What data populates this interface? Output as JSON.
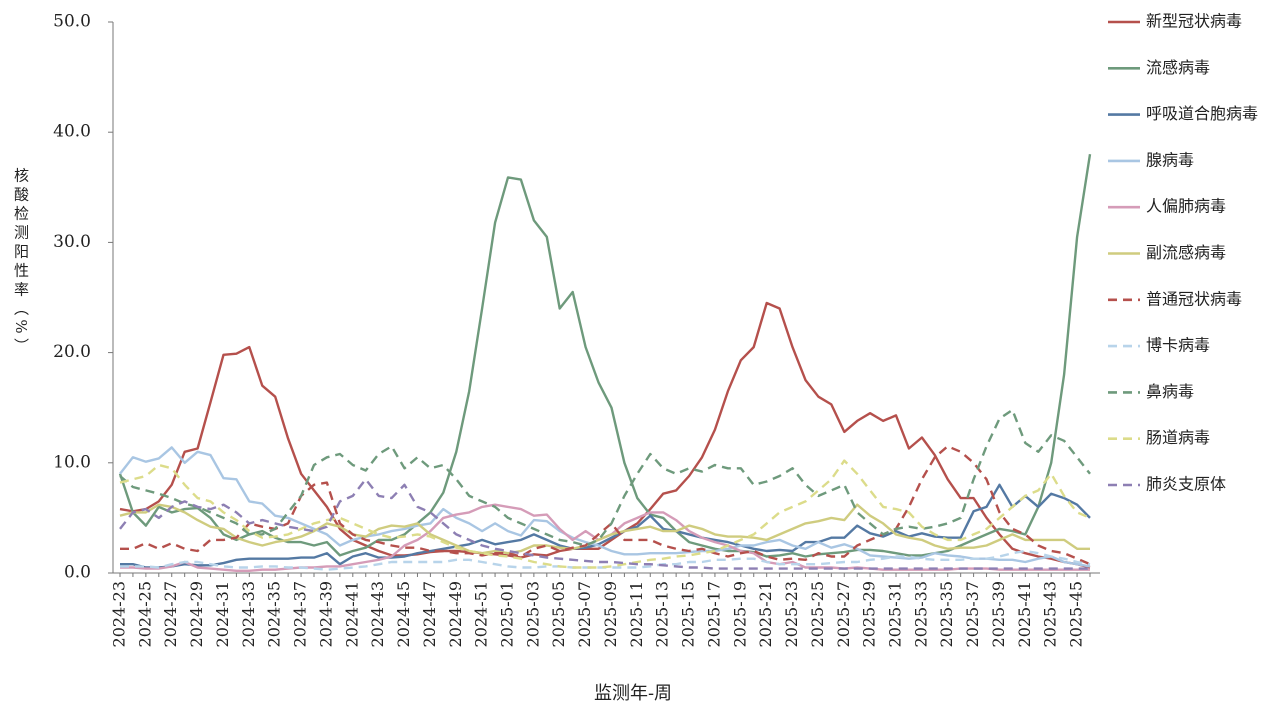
{
  "chart_data": {
    "type": "line",
    "y_label": "核酸检测阳性率（%）",
    "x_label": "监测年-周",
    "categories": [
      "2024-23",
      null,
      "2024-25",
      null,
      "2024-27",
      null,
      "2024-29",
      null,
      "2024-31",
      null,
      "2024-33",
      null,
      "2024-35",
      null,
      "2024-37",
      null,
      "2024-39",
      null,
      "2024-41",
      null,
      "2024-43",
      null,
      "2024-45",
      null,
      "2024-47",
      null,
      "2024-49",
      null,
      "2024-51",
      null,
      "2025-01",
      null,
      "2025-03",
      null,
      "2025-05",
      null,
      "2025-07",
      null,
      "2025-09",
      null,
      "2025-11",
      null,
      "2025-13",
      null,
      "2025-15",
      null,
      "2025-17",
      null,
      "2025-19",
      null,
      "2025-21",
      null,
      "2025-23",
      null,
      "2025-25",
      null,
      "2025-27",
      null,
      "2025-29",
      null,
      "2025-31",
      null,
      "2025-33",
      null,
      "2025-35",
      null,
      "2025-37",
      null,
      "2025-39",
      null,
      "2025-41",
      null,
      "2025-43",
      null,
      "2025-45",
      null
    ],
    "ylim": [
      0,
      50
    ],
    "yticks": [
      {
        "value": 0,
        "label": "0.0"
      },
      {
        "value": 10,
        "label": "10.0"
      },
      {
        "value": 20,
        "label": "20.0"
      },
      {
        "value": 30,
        "label": "30.0"
      },
      {
        "value": 40,
        "label": "40.0"
      },
      {
        "value": 50,
        "label": "50.0"
      }
    ],
    "grid": false,
    "legend": "right",
    "series": [
      {
        "name": "新型冠状病毒",
        "color": "#b5504c",
        "dashed": false,
        "values": [
          5.8,
          5.6,
          5.8,
          6.5,
          8,
          11,
          11.3,
          15.5,
          19.8,
          19.9,
          20.5,
          17,
          16,
          12.2,
          9,
          7.5,
          6,
          4,
          3,
          2.5,
          2,
          1.6,
          1.6,
          1.7,
          1.9,
          2,
          2,
          1.9,
          1.8,
          1.7,
          1.6,
          1.4,
          1.7,
          1.6,
          2,
          2.2,
          2.2,
          2.2,
          3,
          3.8,
          4.5,
          5.8,
          7.2,
          7.5,
          8.8,
          10.5,
          13,
          16.5,
          19.3,
          20.5,
          24.5,
          24,
          20.5,
          17.5,
          16,
          15.3,
          12.8,
          13.8,
          14.5,
          13.8,
          14.3,
          11.3,
          12.3,
          10.7,
          8.5,
          6.8,
          6.8,
          5,
          3.5,
          2.2,
          1.8,
          1.5,
          1.3,
          1,
          0.8,
          0.5
        ]
      },
      {
        "name": "流感病毒",
        "color": "#6e9a7c",
        "dashed": false,
        "values": [
          9,
          5.5,
          4.3,
          6,
          5.5,
          5.8,
          5.9,
          5,
          3.5,
          3,
          3.5,
          3.8,
          3.2,
          2.8,
          2.8,
          2.5,
          2.8,
          1.6,
          2,
          2.3,
          3,
          3,
          3.5,
          4.5,
          5.5,
          7.3,
          11,
          16.5,
          24,
          31.8,
          35.9,
          35.7,
          32,
          30.5,
          24,
          25.5,
          20.5,
          17.3,
          15,
          10,
          6.8,
          5.3,
          5,
          3.8,
          2.8,
          2.5,
          2.2,
          2,
          2,
          1.9,
          1.5,
          1.6,
          1.8,
          1.5,
          1.7,
          1.8,
          1.9,
          2.1,
          2.1,
          2,
          1.8,
          1.6,
          1.6,
          1.8,
          2,
          2.5,
          3,
          3.5,
          4,
          3.8,
          3.5,
          6,
          10,
          18,
          30.5,
          38
        ]
      },
      {
        "name": "呼吸道合胞病毒",
        "color": "#5479a3",
        "dashed": false,
        "values": [
          0.8,
          0.8,
          0.5,
          0.5,
          0.6,
          0.8,
          0.7,
          0.7,
          0.9,
          1.2,
          1.3,
          1.3,
          1.3,
          1.3,
          1.4,
          1.4,
          1.8,
          0.8,
          1.5,
          1.8,
          1.4,
          1.4,
          1.5,
          1.8,
          2,
          2.2,
          2.4,
          2.6,
          3,
          2.6,
          2.8,
          3,
          3.5,
          3,
          2.5,
          2.2,
          2.3,
          2.6,
          3.2,
          3.8,
          4.2,
          5.2,
          4,
          3.8,
          3.5,
          3.2,
          3,
          2.8,
          2.5,
          2.2,
          2,
          2.1,
          2,
          2.8,
          2.8,
          3.2,
          3.2,
          4.3,
          3.6,
          3.3,
          3.8,
          3.3,
          3.6,
          3.3,
          3.2,
          3.2,
          5.6,
          6,
          8,
          6,
          7,
          6,
          7.2,
          6.8,
          6.2,
          5
        ]
      },
      {
        "name": "腺病毒",
        "color": "#a9c6e3",
        "dashed": false,
        "values": [
          9,
          10.5,
          10.1,
          10.4,
          11.4,
          10,
          11,
          10.7,
          8.6,
          8.5,
          6.5,
          6.3,
          5.2,
          5,
          4.5,
          4,
          3.5,
          2.5,
          3,
          3.3,
          3.5,
          3.8,
          4,
          4.3,
          4.5,
          5.8,
          5,
          4.5,
          3.8,
          4.5,
          3.8,
          3.4,
          4.8,
          4.7,
          3.8,
          3.2,
          2.8,
          2.5,
          2,
          1.7,
          1.7,
          1.8,
          1.8,
          1.8,
          1.9,
          2,
          2,
          2.2,
          2.5,
          2.5,
          2.8,
          3,
          2.5,
          2.2,
          2.8,
          2.3,
          2.6,
          2.2,
          1.6,
          1.5,
          1.4,
          1.3,
          1.4,
          1.8,
          1.6,
          1.5,
          1.3,
          1.3,
          1.2,
          1.2,
          1,
          1.3,
          1.5,
          1,
          0.8,
          0.6
        ]
      },
      {
        "name": "人偏肺病毒",
        "color": "#d59cb8",
        "dashed": false,
        "values": [
          0.5,
          0.5,
          0.4,
          0.4,
          0.6,
          1,
          0.5,
          0.4,
          0.3,
          0.2,
          0.2,
          0.3,
          0.3,
          0.4,
          0.5,
          0.5,
          0.6,
          0.6,
          0.8,
          1,
          1.2,
          1.5,
          2.5,
          3,
          3.8,
          5,
          5.3,
          5.5,
          6,
          6.2,
          6,
          5.8,
          5.2,
          5.3,
          4,
          3,
          3.8,
          3,
          3.5,
          4.5,
          5,
          5.5,
          5.5,
          4.8,
          3.8,
          3.2,
          2.8,
          2.5,
          2,
          1.8,
          1,
          0.8,
          1,
          0.5,
          0.5,
          0.5,
          0.4,
          0.5,
          0.4,
          0.3,
          0.3,
          0.3,
          0.3,
          0.3,
          0.3,
          0.4,
          0.4,
          0.4,
          0.3,
          0.3,
          0.3,
          0.3,
          0.3,
          0.3,
          0.3,
          0.3
        ]
      },
      {
        "name": "副流感病毒",
        "color": "#cfcc7f",
        "dashed": false,
        "values": [
          5.2,
          5.5,
          5.5,
          6.2,
          6,
          5.5,
          4.8,
          4.2,
          4,
          3.2,
          2.8,
          2.5,
          2.8,
          3,
          3.3,
          3.8,
          4.5,
          4.2,
          3.5,
          3.3,
          4,
          4.3,
          4.2,
          4.5,
          3.5,
          3,
          2.5,
          2,
          1.8,
          2,
          1.8,
          2,
          2.5,
          2.5,
          2.3,
          2.2,
          2.5,
          3,
          3.5,
          3.8,
          4,
          4.2,
          3.8,
          3.8,
          4.3,
          4,
          3.5,
          3.3,
          3.3,
          3.2,
          3,
          3.5,
          4,
          4.5,
          4.7,
          5,
          4.8,
          6.2,
          5.2,
          4.5,
          3.5,
          3.2,
          3,
          2.5,
          2.2,
          2.3,
          2.3,
          2.5,
          3,
          3.5,
          3,
          3,
          3,
          3,
          2.2,
          2.2
        ]
      },
      {
        "name": "普通冠状病毒",
        "color": "#b5504c",
        "dashed": true,
        "values": [
          2.2,
          2.2,
          2.7,
          2.2,
          2.7,
          2.2,
          2,
          3,
          3,
          3.2,
          4.5,
          4.2,
          4,
          4.5,
          7,
          8,
          8.2,
          4.5,
          3.5,
          3,
          2.8,
          2.5,
          2.3,
          2.3,
          2,
          2,
          1.8,
          1.8,
          1.6,
          1.8,
          1.8,
          1.5,
          2.2,
          2.5,
          2,
          2.3,
          2.5,
          3.5,
          4.5,
          3,
          3,
          3,
          2.5,
          2.2,
          2,
          2.2,
          1.8,
          1.5,
          1.8,
          2,
          1.5,
          1.2,
          1.3,
          1.2,
          1.8,
          1.5,
          1.5,
          2.5,
          3,
          3.5,
          4,
          6,
          8.5,
          10.5,
          11.5,
          11,
          10,
          8.5,
          5.5,
          4,
          3.5,
          2.5,
          2,
          1.8,
          1.3,
          0.8
        ]
      },
      {
        "name": "博卡病毒",
        "color": "#b8d4ea",
        "dashed": true,
        "values": [
          0.6,
          0.6,
          0.6,
          0.5,
          0.8,
          1,
          1,
          0.8,
          0.6,
          0.5,
          0.5,
          0.6,
          0.6,
          0.5,
          0.5,
          0.4,
          0.3,
          0.4,
          0.5,
          0.6,
          0.8,
          1,
          1,
          1,
          1,
          1,
          1.2,
          1.2,
          1,
          0.8,
          0.6,
          0.5,
          0.5,
          0.6,
          0.6,
          0.5,
          0.5,
          0.5,
          0.5,
          0.5,
          0.5,
          0.6,
          0.8,
          0.8,
          1,
          1,
          1.2,
          1.2,
          1.3,
          1.3,
          1,
          0.8,
          0.8,
          0.8,
          0.8,
          0.9,
          1,
          1,
          1.2,
          1.3,
          1.5,
          1.5,
          1.3,
          1.2,
          1.2,
          1.2,
          1.3,
          1.3,
          1.5,
          1.8,
          2,
          1.8,
          1.5,
          1.3,
          1,
          0.8
        ]
      },
      {
        "name": "鼻病毒",
        "color": "#6e9a7c",
        "dashed": true,
        "values": [
          8.8,
          7.8,
          7.5,
          7.2,
          6.8,
          6.3,
          6,
          5.5,
          5,
          4.5,
          3.5,
          3.5,
          4,
          5.5,
          7,
          9.8,
          10.5,
          10.8,
          9.8,
          9.3,
          10.8,
          11.5,
          9.5,
          10.5,
          9.5,
          9.8,
          8.5,
          7,
          6.5,
          6,
          5,
          4.5,
          4,
          3.5,
          3,
          2.8,
          2.5,
          3,
          4.5,
          7,
          9,
          10.8,
          9.5,
          9,
          9.5,
          9.2,
          9.8,
          9.5,
          9.5,
          8,
          8.3,
          8.8,
          9.5,
          8,
          7,
          7.5,
          8,
          5.5,
          4.5,
          3.5,
          4,
          4.2,
          4,
          4.2,
          4.5,
          5,
          8.5,
          11.5,
          14,
          14.8,
          11.8,
          11,
          12.5,
          12,
          10.5,
          9
        ]
      },
      {
        "name": "肠道病毒",
        "color": "#dcdc8a",
        "dashed": true,
        "values": [
          8.2,
          8.5,
          8.8,
          9.8,
          9.5,
          8,
          6.8,
          6.5,
          5.5,
          4.8,
          3.8,
          3.2,
          3.3,
          3.5,
          4,
          4.5,
          4.8,
          5,
          4.5,
          4,
          3.5,
          3.2,
          3.3,
          3.5,
          3.3,
          2.8,
          2.3,
          2,
          1.8,
          1.6,
          1.5,
          1.3,
          1,
          0.8,
          0.6,
          0.5,
          0.5,
          0.5,
          0.6,
          0.8,
          1,
          1.2,
          1.3,
          1.5,
          1.6,
          1.8,
          2,
          2.5,
          3,
          3.5,
          4.5,
          5.5,
          6,
          6.5,
          7.5,
          8.5,
          10.2,
          9,
          7.5,
          6,
          5.8,
          5.5,
          4.2,
          3.5,
          3,
          3,
          3.5,
          4,
          5,
          6,
          7,
          7.5,
          9,
          7,
          5.5,
          5
        ]
      },
      {
        "name": "肺炎支原体",
        "color": "#8d7fb3",
        "dashed": true,
        "values": [
          4,
          5.5,
          5.8,
          5,
          6,
          6.5,
          6,
          5.8,
          6.2,
          5.5,
          4.5,
          4.8,
          4.5,
          4.2,
          4,
          3.8,
          4.2,
          6.5,
          7,
          8.5,
          7,
          6.8,
          8,
          6,
          5.5,
          4.5,
          3.5,
          3,
          2.5,
          2.2,
          2,
          1.8,
          1.6,
          1.4,
          1.3,
          1.2,
          1.1,
          1,
          1,
          0.9,
          0.8,
          0.8,
          0.7,
          0.6,
          0.5,
          0.5,
          0.4,
          0.4,
          0.4,
          0.4,
          0.4,
          0.4,
          0.4,
          0.4,
          0.4,
          0.4,
          0.4,
          0.4,
          0.4,
          0.4,
          0.4,
          0.4,
          0.4,
          0.4,
          0.4,
          0.4,
          0.4,
          0.4,
          0.4,
          0.4,
          0.4,
          0.4,
          0.4,
          0.4,
          0.4,
          0.4
        ]
      }
    ]
  }
}
